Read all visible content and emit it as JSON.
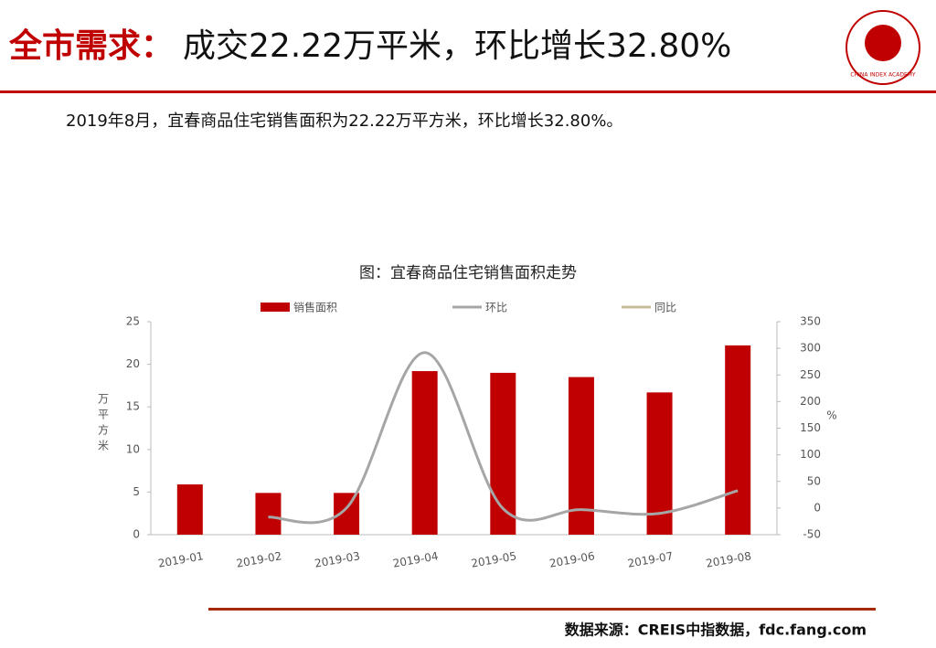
{
  "slide": {
    "title_highlight": "全市需求：",
    "title_rest": "成交22.22万平米，环比增长32.80%",
    "summary": "2019年8月，宜春商品住宅销售面积为22.22万平方米，环比增长32.80%。",
    "source": "数据来源：CREIS中指数据，fdc.fang.com",
    "logo_text": "CHINA INDEX ACADEMY"
  },
  "chart_data": {
    "type": "bar",
    "title": "图：宜春商品住宅销售面积走势",
    "categories": [
      "2019-01",
      "2019-02",
      "2019-03",
      "2019-04",
      "2019-05",
      "2019-06",
      "2019-07",
      "2019-08"
    ],
    "series": [
      {
        "name": "销售面积",
        "color": "#c00000",
        "type": "bar",
        "values": [
          5.9,
          4.9,
          4.9,
          19.2,
          19.0,
          18.5,
          16.7,
          22.22
        ]
      },
      {
        "name": "环比",
        "color": "#a6a6a6",
        "type": "line",
        "axis": "y2",
        "values": [
          null,
          -17,
          0,
          292,
          -1,
          -3,
          -10,
          32.8
        ]
      },
      {
        "name": "同比",
        "color": "#c4bd97",
        "type": "line",
        "axis": "y2",
        "values": [
          null,
          null,
          null,
          null,
          null,
          null,
          null,
          null
        ]
      }
    ],
    "ylabel": "万平方米",
    "y2label": "%",
    "ylim": [
      0,
      25
    ],
    "yticks": [
      0,
      5,
      10,
      15,
      20,
      25
    ],
    "y2lim": [
      -50,
      350
    ],
    "y2ticks": [
      -50,
      0,
      50,
      100,
      150,
      200,
      250,
      300,
      350
    ]
  }
}
